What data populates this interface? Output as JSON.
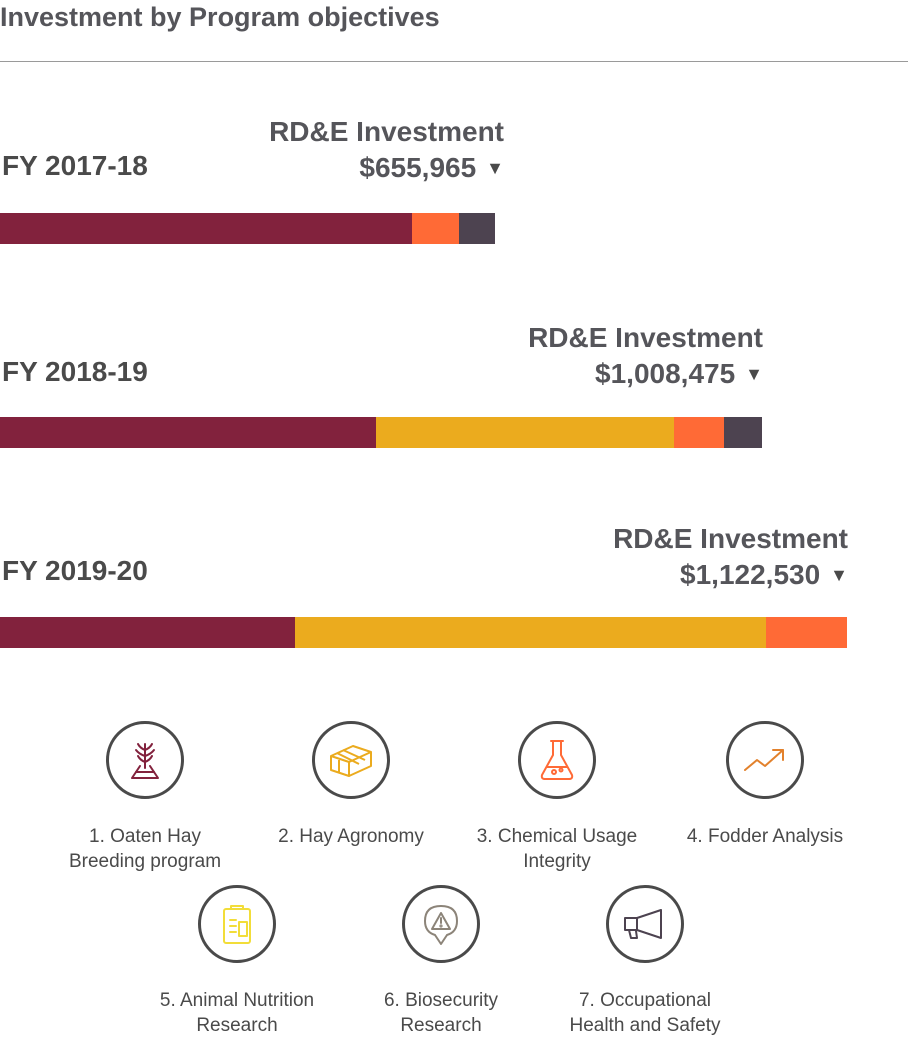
{
  "page": {
    "title": "Investment by Program objectives",
    "invest_label": "RD&E Investment"
  },
  "chart_data": {
    "type": "bar",
    "orientation": "horizontal",
    "stacked": true,
    "title": "Investment by Program objectives",
    "categories": [
      "FY 2017-18",
      "FY 2018-19",
      "FY 2019-20"
    ],
    "totals": [
      "$655,965",
      "$1,008,475",
      "$1,122,530"
    ],
    "total_values": [
      655965,
      1008475,
      1122530
    ],
    "series": [
      {
        "name": "1. Oaten Hay Breeding program",
        "color": "#82223d",
        "values": [
          546000,
          498000,
          391000
        ]
      },
      {
        "name": "2. Hay Agronomy",
        "color": "#ebab1e",
        "values": [
          0,
          394000,
          624000
        ]
      },
      {
        "name": "3. Chemical Usage Integrity",
        "color": "#ff6a36",
        "values": [
          62000,
          66000,
          107530
        ]
      },
      {
        "name": "4. Fodder Analysis",
        "color": "#e2812c",
        "values": [
          0,
          0,
          0
        ]
      },
      {
        "name": "5. Animal Nutrition Research",
        "color": "#f2dd39",
        "values": [
          0,
          0,
          0
        ]
      },
      {
        "name": "6. Biosecurity Research",
        "color": "#8c8479",
        "values": [
          0,
          0,
          0
        ]
      },
      {
        "name": "7. Occupational Health and Safety",
        "color": "#4d4350",
        "values": [
          47965,
          50475,
          0
        ]
      }
    ]
  },
  "legend": [
    {
      "label": "1. Oaten Hay\nBreeding program",
      "color": "#82223d",
      "icon": "wheat-flask-icon"
    },
    {
      "label": "2. Hay Agronomy",
      "color": "#ebab1e",
      "icon": "hay-bale-icon"
    },
    {
      "label": "3. Chemical Usage\nIntegrity",
      "color": "#ff6a36",
      "icon": "chemical-flask-icon"
    },
    {
      "label": "4. Fodder Analysis",
      "color": "#e2812c",
      "icon": "trend-arrow-icon"
    },
    {
      "label": "5. Animal Nutrition\nResearch",
      "color": "#f2dd39",
      "icon": "clipboard-icon"
    },
    {
      "label": "6. Biosecurity\nResearch",
      "color": "#8c8479",
      "icon": "warning-pin-icon"
    },
    {
      "label": "7. Occupational\nHealth and Safety",
      "color": "#4d4350",
      "icon": "megaphone-icon"
    }
  ]
}
